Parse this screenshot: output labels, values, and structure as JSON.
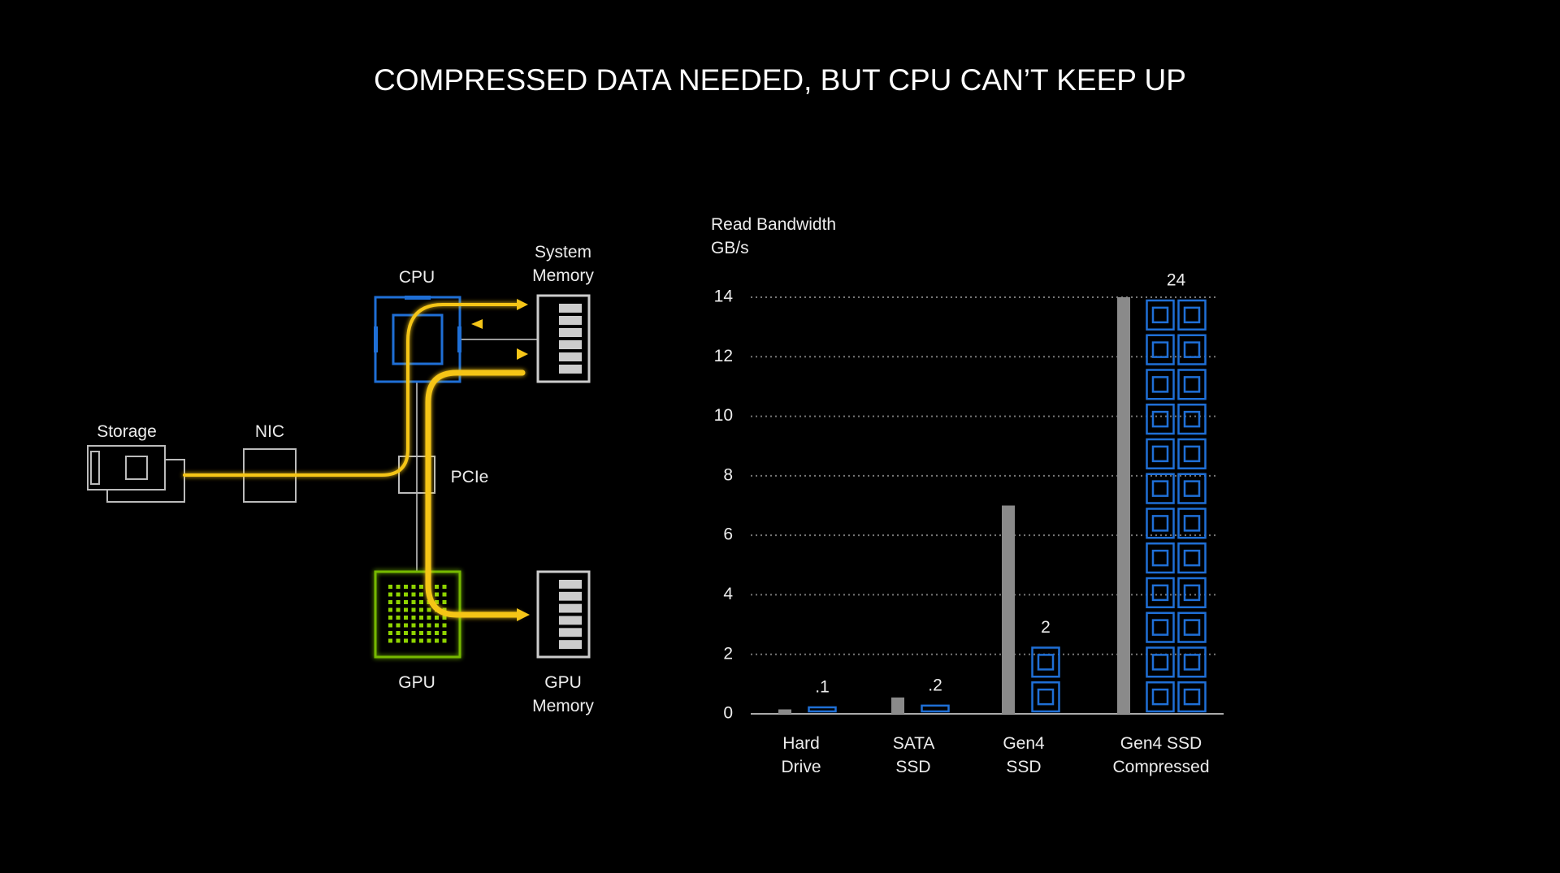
{
  "title": "COMPRESSED DATA NEEDED, BUT CPU CAN’T KEEP UP",
  "diagram": {
    "nodes": [
      {
        "label": "CPU"
      },
      {
        "label": "System Memory"
      },
      {
        "label": "Storage"
      },
      {
        "label": "NIC"
      },
      {
        "label": "PCIe"
      },
      {
        "label": "GPU"
      },
      {
        "label": "GPU Memory"
      }
    ]
  },
  "chart_data": {
    "type": "bar",
    "ylabel": "Read Bandwidth GB/s",
    "categories": [
      "Hard Drive",
      "SATA SSD",
      "Gen4 SSD",
      "Gen4 SSD Compressed"
    ],
    "series": [
      {
        "values": [
          0.15,
          0.55,
          7,
          14
        ],
        "color": "#8a8a8a"
      },
      {
        "values": [
          0.1,
          0.2,
          2,
          24
        ],
        "value_labels": [
          ".1",
          ".2",
          "2",
          "24"
        ],
        "color": "#1f6fd6"
      }
    ],
    "ylim": [
      0,
      14
    ],
    "yticks": [
      0,
      2,
      4,
      6,
      8,
      10,
      12,
      14
    ],
    "grid": true
  }
}
